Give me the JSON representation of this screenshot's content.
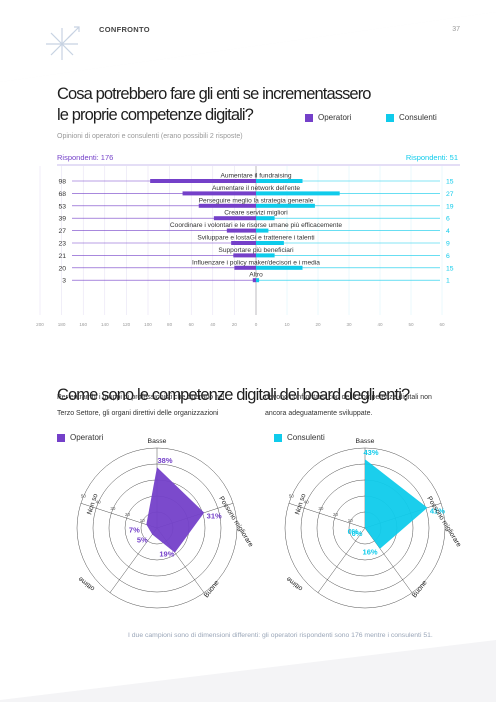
{
  "header": {
    "section": "CONFRONTO",
    "page_number": "37"
  },
  "title_1": {
    "line1": "Cosa potrebbero fare gli enti se incrementassero",
    "line2": "le proprie competenze digitali?"
  },
  "legend": {
    "operatori": "Operatori",
    "consulenti": "Consulenti"
  },
  "colors": {
    "operatori": "#7440c9",
    "consulenti": "#0fcbeb",
    "accent_text": "#7440c9"
  },
  "subtitle": "Opinioni di operatori e consulenti (erano possibili 2 risposte)",
  "respondents": {
    "left": "Rispondenti: 176",
    "right": "Rispondenti: 51"
  },
  "chart_data": [
    {
      "type": "bar",
      "orientation": "diverging-horizontal",
      "categories": [
        "Aumentare il fundraising",
        "Aumentare il network dell'ente",
        "Perseguire meglio la strategia generale",
        "Creare servizi migliori",
        "Coordinare i volontari e le risorse umane più efficacemente",
        "Sviluppare e lostaGi e trattenere i talenti",
        "Supportare più beneficiari",
        "Influenzare i policy maker/decisori e i media",
        "Altro"
      ],
      "series": [
        {
          "name": "Operatori",
          "values": [
            98,
            68,
            53,
            39,
            27,
            23,
            21,
            20,
            3
          ]
        },
        {
          "name": "Consulenti",
          "values": [
            15,
            27,
            19,
            6,
            4,
            9,
            6,
            15,
            1
          ]
        }
      ],
      "left_labels": [
        "98",
        "68",
        "53",
        "39",
        "27",
        "23",
        "21",
        "20",
        "3"
      ],
      "right_labels": [
        "15",
        "27",
        "19",
        "6",
        "4",
        "9",
        "6",
        "15",
        "1"
      ],
      "left_axis_ticks": [
        "200",
        "180",
        "160",
        "140",
        "120",
        "100",
        "80",
        "60",
        "40",
        "20",
        "0"
      ],
      "right_axis_ticks": [
        "10",
        "20",
        "30",
        "40",
        "50",
        "60"
      ],
      "left_max": 200,
      "right_max": 60
    },
    {
      "type": "radar",
      "name": "Operatori",
      "axes": [
        "Basse",
        "Possono migliorare",
        "Buone",
        "Ottime",
        "Non so"
      ],
      "values": [
        38,
        31,
        19,
        5,
        7
      ],
      "value_labels": [
        "38%",
        "31%",
        "19%",
        "5%",
        "7%"
      ],
      "ring_ticks": [
        "10",
        "20",
        "30",
        "40",
        "50"
      ]
    },
    {
      "type": "radar",
      "name": "Consulenti",
      "axes": [
        "Basse",
        "Possono migliorare",
        "Buone",
        "Ottime",
        "Non so"
      ],
      "values": [
        43,
        41,
        16,
        0,
        0
      ],
      "value_labels": [
        "43%",
        "41%",
        "16%",
        "0%",
        "0%"
      ],
      "ring_ticks": [
        "10",
        "20",
        "30",
        "40",
        "50"
      ]
    }
  ],
  "radar_axis_text": {
    "top": "Basse",
    "right": "Possono migliorare",
    "bottom_right": "Buone",
    "bottom_left": "ottime",
    "left": "Non so"
  },
  "title_2": "Come sono le competenze digitali dei board degli enti?",
  "body": {
    "col1_line1": "Per entrambi i gruppi di professionisti che operano nel",
    "col1_line2": "Terzo Settore, gli organi direttivi delle organizzazioni",
    "col2_line1": "devono confrontarsi con delle competenze digitali non",
    "col2_line2": "ancora adeguatamente sviluppate."
  },
  "footnote": "I due campioni sono di dimensioni differenti: gli operatori rispondenti sono 176 mentre i consulenti 51."
}
